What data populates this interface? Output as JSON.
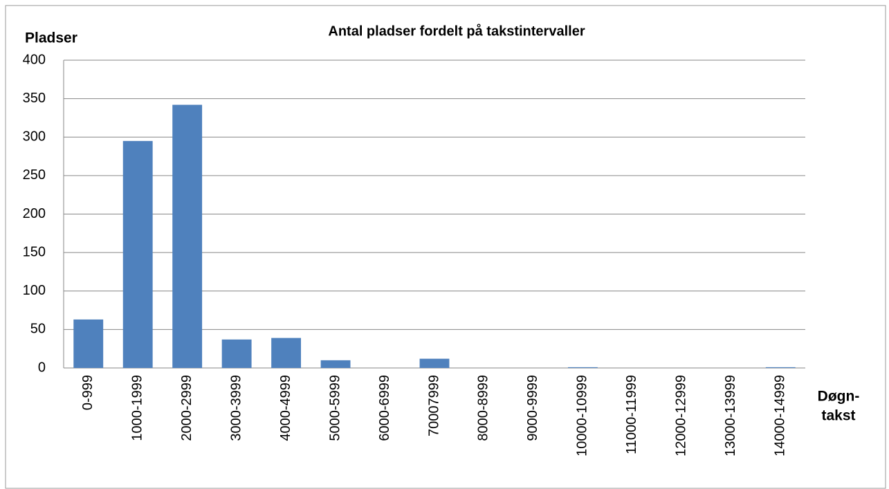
{
  "chart_data": {
    "type": "bar",
    "title": "Antal pladser fordelt på takstintervaller",
    "ylabel": "Pladser",
    "xlabel": [
      "Døgn-",
      "takst"
    ],
    "categories": [
      "0-999",
      "1000-1999",
      "2000-2999",
      "3000-3999",
      "4000-4999",
      "5000-5999",
      "6000-6999",
      "70007999",
      "8000-8999",
      "9000-9999",
      "10000-10999",
      "11000-11999",
      "12000-12999",
      "13000-13999",
      "14000-14999"
    ],
    "values": [
      63,
      295,
      342,
      37,
      39,
      10,
      0,
      12,
      0,
      0,
      1,
      0,
      0,
      0,
      1
    ],
    "color": "#4f81bd",
    "ylim": [
      0,
      400
    ],
    "yticks": [
      0,
      50,
      100,
      150,
      200,
      250,
      300,
      350,
      400
    ],
    "grid": true
  }
}
